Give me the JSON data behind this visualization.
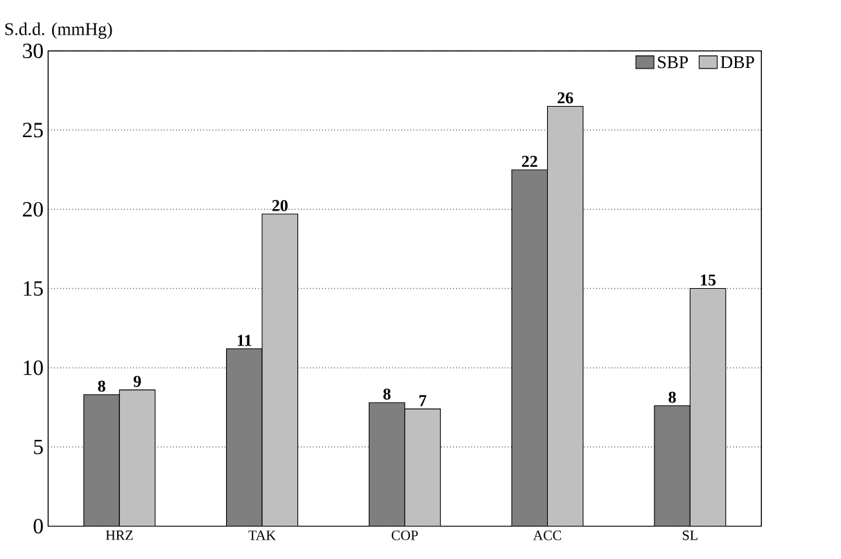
{
  "chart_data": {
    "type": "bar",
    "ylabel": "S.d.d. (mmHg)",
    "categories": [
      "HRZ",
      "TAK",
      "COP",
      "ACC",
      "SL"
    ],
    "series": [
      {
        "name": "SBP",
        "color": "#7f7f7f",
        "values": [
          8.3,
          11.2,
          7.8,
          22.5,
          7.6
        ],
        "value_labels": [
          "8",
          "11",
          "8",
          "22",
          "8"
        ]
      },
      {
        "name": "DBP",
        "color": "#bfbfbf",
        "values": [
          8.6,
          19.7,
          7.4,
          26.5,
          15.0
        ],
        "value_labels": [
          "9",
          "20",
          "7",
          "26",
          "15"
        ]
      }
    ],
    "ylim": [
      0,
      30
    ],
    "yticks": [
      0,
      5,
      10,
      15,
      20,
      25,
      30
    ],
    "grid": "y",
    "legend": "top right"
  }
}
